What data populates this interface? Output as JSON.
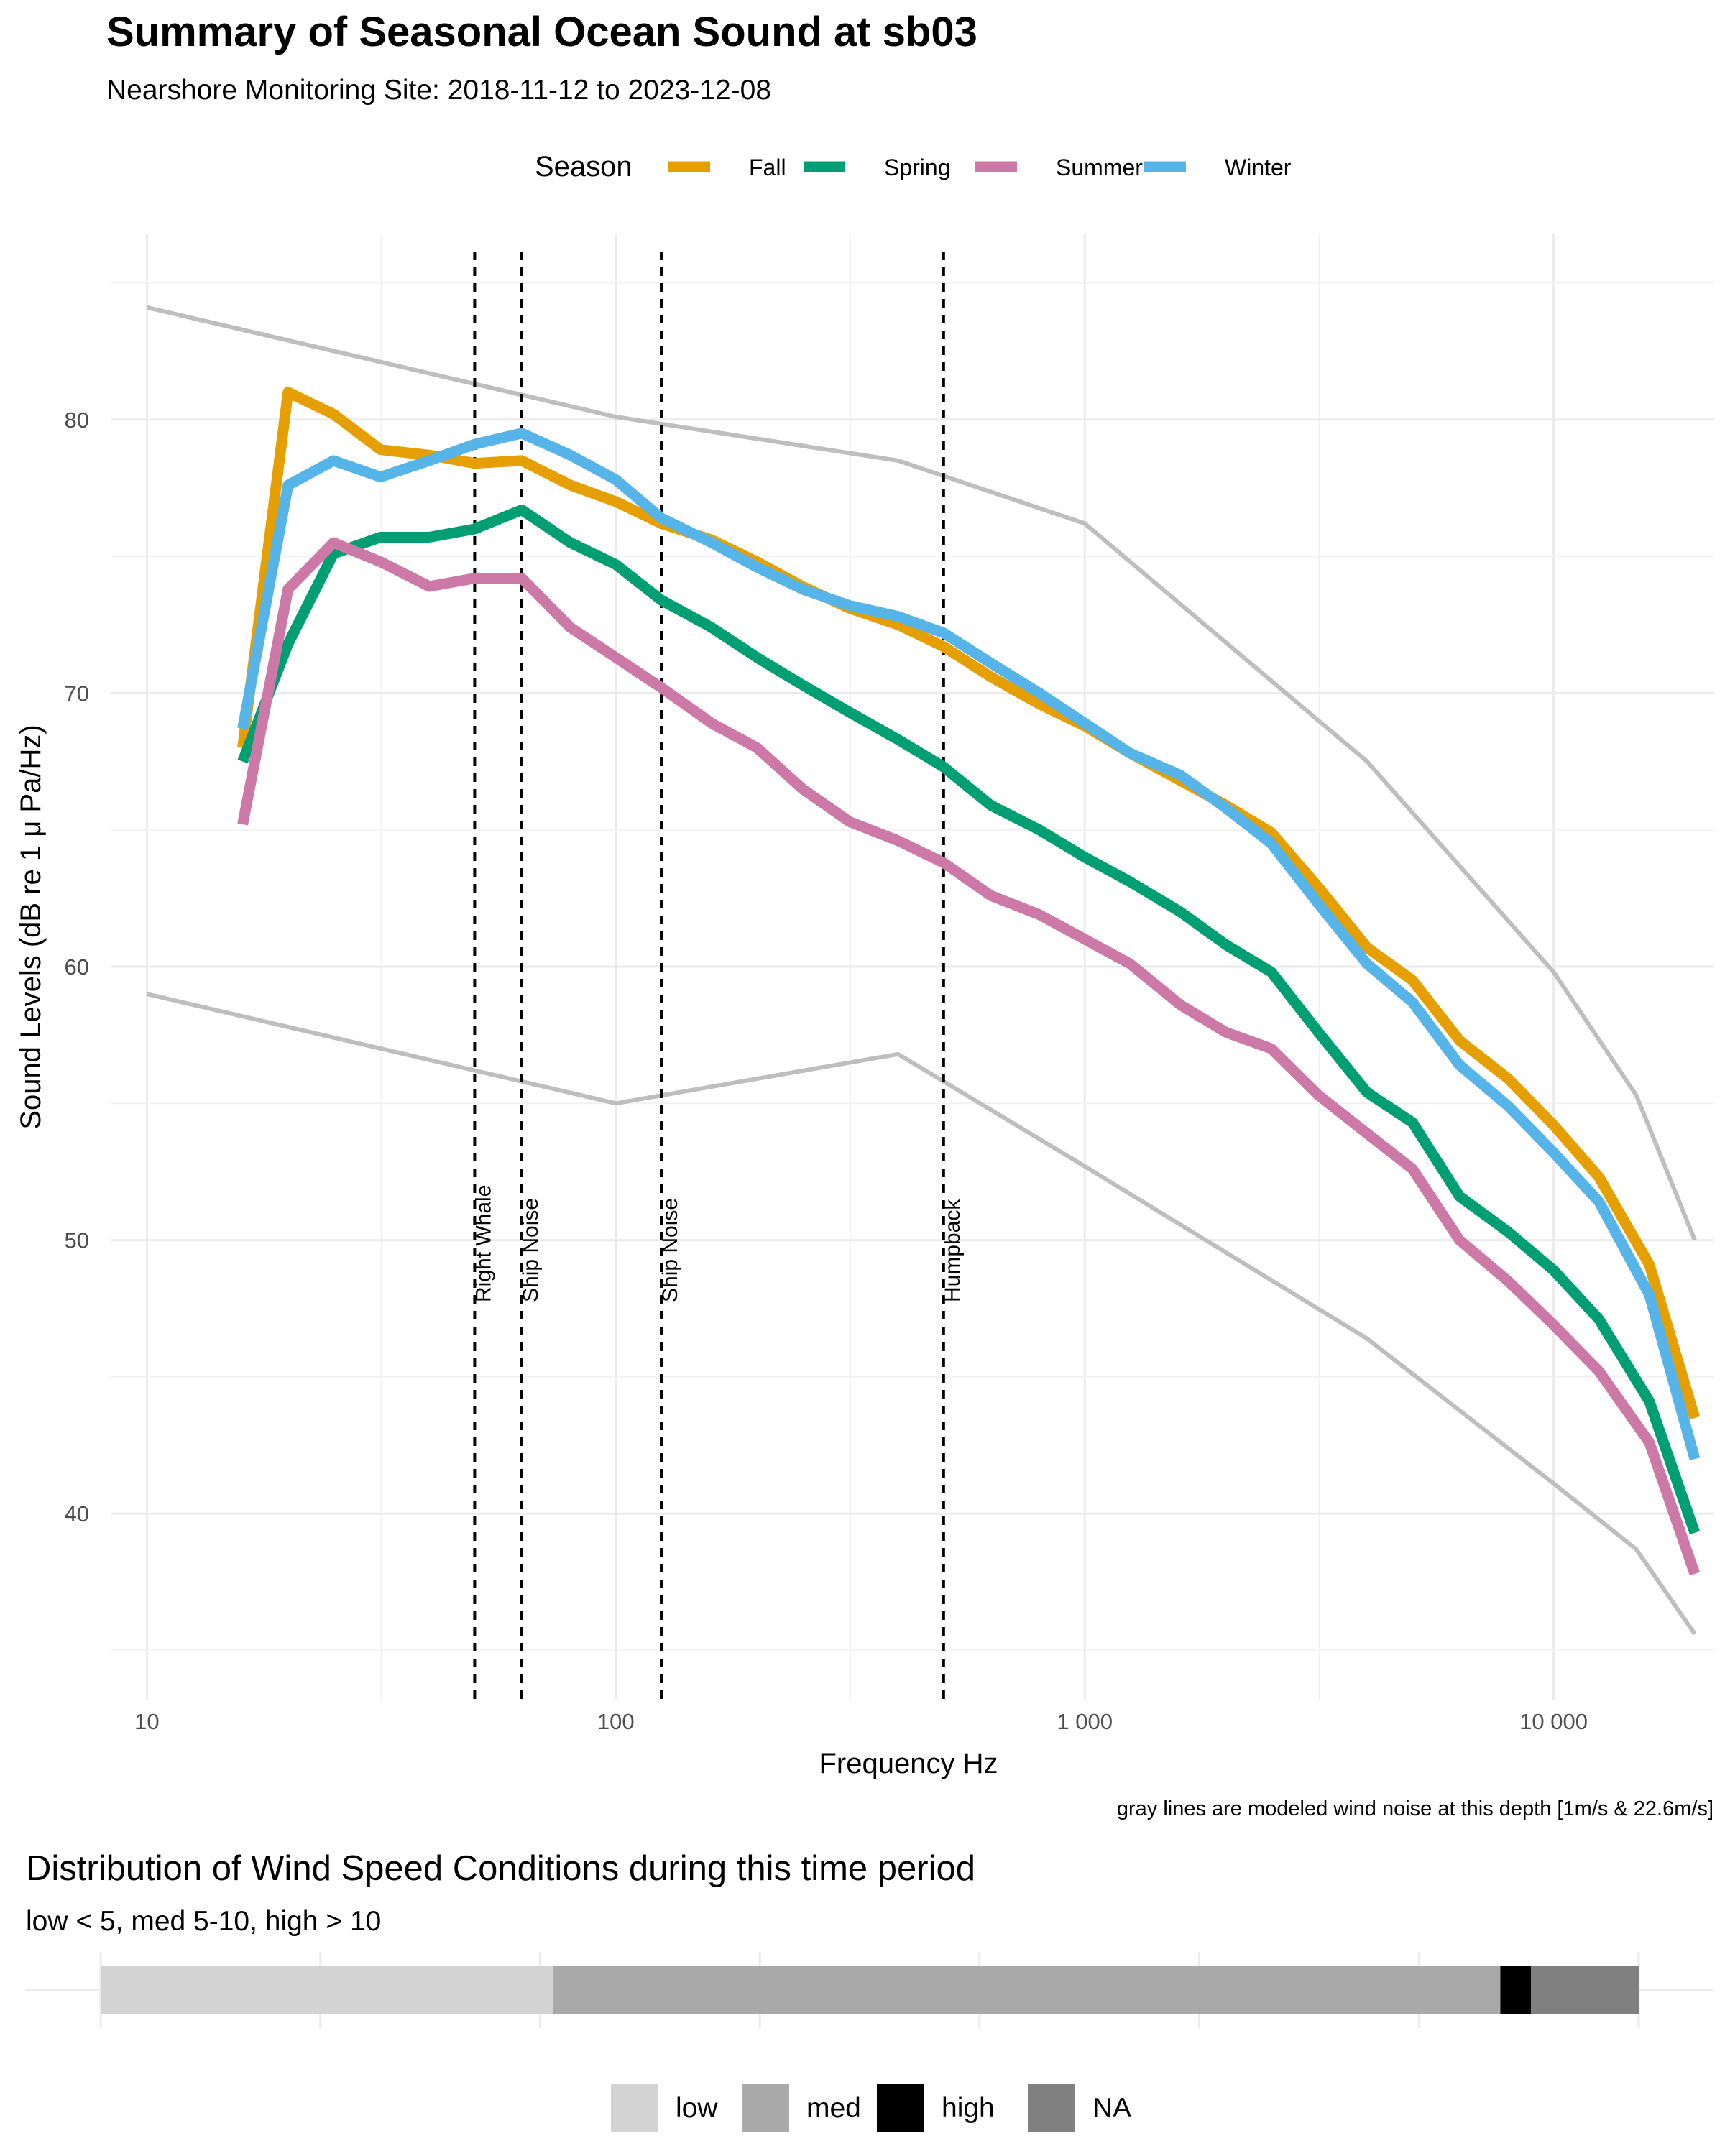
{
  "chart_data": [
    {
      "type": "line",
      "title": "Summary of Seasonal Ocean Sound at sb03",
      "subtitle": "Nearshore Monitoring Site: 2018-11-12 to 2023-12-08",
      "xlabel": "Frequency Hz",
      "ylabel": "Sound Levels (dB re 1 μ Pa/Hz)",
      "x_scale": "log10",
      "xlim": [
        8.4,
        22000
      ],
      "ylim": [
        33.2,
        86.8
      ],
      "x_ticks": [
        {
          "value": 10,
          "label": "10"
        },
        {
          "value": 100,
          "label": "100"
        },
        {
          "value": 1000,
          "label": "1 000"
        },
        {
          "value": 10000,
          "label": "10 000"
        }
      ],
      "y_ticks": [
        40,
        50,
        60,
        70,
        80
      ],
      "grid": true,
      "legend": {
        "title": "Season",
        "position": "top"
      },
      "series": [
        {
          "name": "Fall",
          "color": "#E69F00",
          "x": [
            16,
            20,
            25,
            31.5,
            40,
            50,
            63,
            80,
            100,
            125,
            160,
            200,
            250,
            315,
            400,
            500,
            630,
            800,
            1000,
            1250,
            1600,
            2000,
            2500,
            3150,
            4000,
            5000,
            6300,
            8000,
            10000,
            12500,
            16000,
            20000
          ],
          "values": [
            68.0,
            81.0,
            80.2,
            78.9,
            78.7,
            78.4,
            78.5,
            77.6,
            77.0,
            76.2,
            75.6,
            74.8,
            73.9,
            73.1,
            72.5,
            71.7,
            70.6,
            69.6,
            68.8,
            67.8,
            66.8,
            65.9,
            64.9,
            62.9,
            60.7,
            59.5,
            57.3,
            55.9,
            54.2,
            52.3,
            49.1,
            43.5
          ]
        },
        {
          "name": "Spring",
          "color": "#009E73",
          "x": [
            16,
            20,
            25,
            31.5,
            40,
            50,
            63,
            80,
            100,
            125,
            160,
            200,
            250,
            315,
            400,
            500,
            630,
            800,
            1000,
            1250,
            1600,
            2000,
            2500,
            3150,
            4000,
            5000,
            6300,
            8000,
            10000,
            12500,
            16000,
            20000
          ],
          "values": [
            67.5,
            71.8,
            75.1,
            75.7,
            75.7,
            76.0,
            76.7,
            75.5,
            74.7,
            73.4,
            72.4,
            71.3,
            70.3,
            69.3,
            68.3,
            67.3,
            65.9,
            65.0,
            64.0,
            63.1,
            62.0,
            60.8,
            59.8,
            57.6,
            55.4,
            54.3,
            51.6,
            50.3,
            48.9,
            47.1,
            44.1,
            39.3
          ]
        },
        {
          "name": "Summer",
          "color": "#CC79A7",
          "x": [
            16,
            20,
            25,
            31.5,
            40,
            50,
            63,
            80,
            100,
            125,
            160,
            200,
            250,
            315,
            400,
            500,
            630,
            800,
            1000,
            1250,
            1600,
            2000,
            2500,
            3150,
            4000,
            5000,
            6300,
            8000,
            10000,
            12500,
            16000,
            20000
          ],
          "values": [
            65.2,
            73.8,
            75.5,
            74.8,
            73.9,
            74.2,
            74.2,
            72.4,
            71.3,
            70.2,
            68.9,
            68.0,
            66.5,
            65.3,
            64.6,
            63.8,
            62.6,
            61.9,
            61.0,
            60.1,
            58.6,
            57.6,
            57.0,
            55.3,
            53.9,
            52.6,
            50.0,
            48.5,
            46.9,
            45.2,
            42.6,
            37.8
          ]
        },
        {
          "name": "Winter",
          "color": "#56B4E9",
          "x": [
            16,
            20,
            25,
            31.5,
            40,
            50,
            63,
            80,
            100,
            125,
            160,
            200,
            250,
            315,
            400,
            500,
            630,
            800,
            1000,
            1250,
            1600,
            2000,
            2500,
            3150,
            4000,
            5000,
            6300,
            8000,
            10000,
            12500,
            16000,
            20000
          ],
          "values": [
            68.7,
            77.6,
            78.5,
            77.9,
            78.5,
            79.1,
            79.5,
            78.7,
            77.8,
            76.4,
            75.5,
            74.6,
            73.8,
            73.2,
            72.8,
            72.2,
            71.1,
            70.0,
            68.9,
            67.8,
            67.0,
            65.8,
            64.5,
            62.3,
            60.1,
            58.7,
            56.4,
            54.9,
            53.2,
            51.4,
            48.0,
            42.0
          ]
        }
      ],
      "reference_lines": {
        "color": "#bebebe",
        "lines": [
          {
            "x": [
              10,
              100,
              400,
              1000,
              4000,
              10000,
              15000,
              20000
            ],
            "values": [
              84.1,
              80.1,
              78.5,
              76.2,
              67.5,
              59.8,
              55.3,
              50.0
            ]
          },
          {
            "x": [
              10,
              100,
              400,
              1000,
              4000,
              10000,
              15000,
              20000
            ],
            "values": [
              59.0,
              55.0,
              56.8,
              52.7,
              46.4,
              41.1,
              38.7,
              35.6
            ]
          }
        ]
      },
      "vertical_markers": [
        {
          "x": 50,
          "label": "Right Whale"
        },
        {
          "x": 63,
          "label": "Ship Noise"
        },
        {
          "x": 125,
          "label": "Ship Noise"
        },
        {
          "x": 500,
          "label": "Humpback"
        }
      ],
      "caption": "gray lines are modeled wind noise at this depth [1m/s & 22.6m/s]"
    },
    {
      "type": "bar",
      "orientation": "horizontal-stacked",
      "title": "Distribution of Wind Speed Conditions during this time period",
      "subtitle": "low < 5, med 5-10, high > 10",
      "categories": [
        "low",
        "med",
        "high",
        "NA"
      ],
      "values": [
        29.4,
        61.6,
        2.0,
        7.0
      ],
      "colors": [
        "#d3d3d3",
        "#a9a9a9",
        "#000000",
        "#808080"
      ],
      "legend": {
        "position": "bottom"
      }
    }
  ]
}
